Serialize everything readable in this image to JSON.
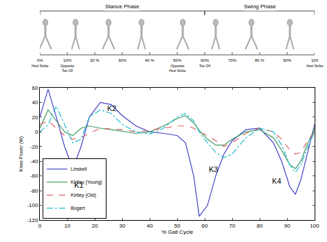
{
  "chart_data": {
    "type": "line",
    "x_title": "% Gait Cycle",
    "y_title": "Knee Power (W)",
    "x": [
      0,
      3,
      6,
      9,
      12,
      15,
      18,
      22,
      26,
      30,
      35,
      40,
      45,
      50,
      53,
      56,
      58,
      61,
      64,
      67,
      70,
      75,
      80,
      85,
      88,
      91,
      93,
      95,
      97,
      100
    ],
    "series": [
      {
        "name": "Linskell",
        "color": "#4040c8",
        "line_style": "solid",
        "values": [
          20,
          58,
          20,
          -20,
          -50,
          -20,
          20,
          40,
          37,
          22,
          8,
          0,
          -2,
          -5,
          -15,
          -60,
          -115,
          -100,
          -60,
          -30,
          -12,
          3,
          5,
          -15,
          -40,
          -75,
          -85,
          -65,
          -35,
          10
        ]
      },
      {
        "name": "Kirtley (Young)",
        "color": "#3f9a60",
        "line_style": "solid",
        "values": [
          5,
          30,
          15,
          0,
          -5,
          5,
          8,
          5,
          3,
          1,
          -2,
          0,
          8,
          18,
          22,
          12,
          2,
          -10,
          -18,
          -18,
          -10,
          0,
          3,
          -8,
          -25,
          -45,
          -50,
          -40,
          -20,
          5
        ]
      },
      {
        "name": "Kirtley (Old)",
        "color": "#e06060",
        "line_style": "dash",
        "values": [
          10,
          15,
          5,
          -5,
          -10,
          -8,
          -2,
          5,
          4,
          3,
          0,
          2,
          5,
          8,
          8,
          5,
          0,
          -5,
          -12,
          -20,
          -15,
          -2,
          5,
          0,
          -10,
          -25,
          -30,
          -28,
          -15,
          0
        ]
      },
      {
        "name": "Bogert",
        "color": "#20bcd0",
        "line_style": "dashdot",
        "values": [
          0,
          10,
          35,
          10,
          -15,
          -10,
          20,
          30,
          25,
          10,
          0,
          -3,
          5,
          20,
          25,
          15,
          0,
          -15,
          -28,
          -35,
          -30,
          -8,
          5,
          0,
          -18,
          -45,
          -55,
          -45,
          -25,
          0
        ]
      }
    ],
    "xlim": [
      0,
      100
    ],
    "xticks": [
      0,
      10,
      20,
      30,
      40,
      50,
      60,
      70,
      80,
      90,
      100
    ],
    "ylim": [
      -120,
      60
    ],
    "yticks": [
      -120,
      -100,
      -80,
      -60,
      -40,
      -20,
      0,
      20,
      40,
      60
    ],
    "grid": false,
    "legend": "lower left",
    "annotations": [
      {
        "text": "K1",
        "x": 14,
        "y": -72
      },
      {
        "text": "K2",
        "x": 26,
        "y": 32
      },
      {
        "text": "K3",
        "x": 63,
        "y": -51
      },
      {
        "text": "K4",
        "x": 86,
        "y": -67
      }
    ],
    "phases": [
      {
        "label": "Stance Phase",
        "start": 0,
        "end": 60
      },
      {
        "label": "Swing Phase",
        "start": 60,
        "end": 100
      }
    ],
    "gait_events": [
      {
        "value": 0,
        "label": "0%",
        "event": [
          "Heel Strike"
        ]
      },
      {
        "value": 10,
        "label": "10%",
        "event": [
          "Opposite",
          "Toe Off"
        ]
      },
      {
        "value": 20,
        "label": "20 %"
      },
      {
        "value": 30,
        "label": "30%"
      },
      {
        "value": 40,
        "label": "40 %"
      },
      {
        "value": 50,
        "label": "50%",
        "event": [
          "Opposite",
          "Heel Strike"
        ]
      },
      {
        "value": 60,
        "label": "60%",
        "event": [
          "Toe Off"
        ]
      },
      {
        "value": 70,
        "label": "70%"
      },
      {
        "value": 80,
        "label": "80 %"
      },
      {
        "value": 90,
        "label": "90%"
      },
      {
        "value": 100,
        "label": "100",
        "event": [
          "Heel Strike"
        ]
      }
    ]
  }
}
